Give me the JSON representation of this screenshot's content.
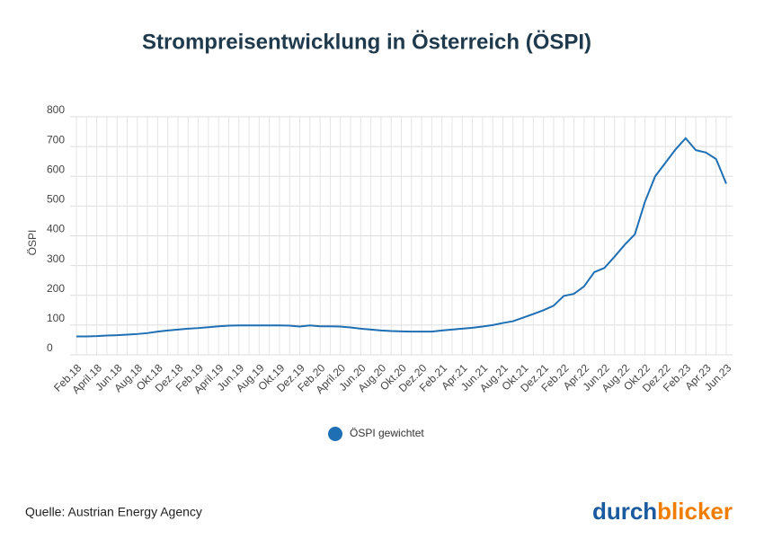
{
  "chart_data": {
    "type": "line",
    "title": "Strompreisentwicklung in Österreich (ÖSPI)",
    "y_label": "ÖSPI",
    "categories": [
      "Feb.18",
      null,
      "April.18",
      null,
      "Jun.18",
      null,
      "Aug.18",
      null,
      "Okt.18",
      null,
      "Dez.18",
      null,
      "Feb.19",
      null,
      "April.19",
      null,
      "Jun.19",
      null,
      "Aug.19",
      null,
      "Okt.19",
      null,
      "Dez.19",
      null,
      "Feb.20",
      null,
      "April.20",
      null,
      "Jun.20",
      null,
      "Aug.20",
      null,
      "Okt.20",
      null,
      "Dez.20",
      null,
      "Feb.21",
      null,
      "Apr.21",
      null,
      "Jun.21",
      null,
      "Aug.21",
      null,
      "Okt.21",
      null,
      "Dez.21",
      null,
      "Feb.22",
      null,
      "Apr.22",
      null,
      "Jun.22",
      null,
      "Aug.22",
      null,
      "Okt.22",
      null,
      "Dez.22",
      null,
      "Feb.23",
      null,
      "Apr.23",
      null,
      "Jun.23"
    ],
    "series": [
      {
        "name": "ÖSPI gewichtet",
        "color": "#1f6fb4",
        "values": [
          62,
          62,
          63,
          65,
          66,
          68,
          70,
          73,
          78,
          82,
          85,
          88,
          90,
          93,
          96,
          98,
          99,
          99,
          99,
          99,
          99,
          98,
          95,
          99,
          96,
          96,
          95,
          92,
          88,
          85,
          82,
          80,
          79,
          78,
          78,
          78,
          82,
          85,
          88,
          91,
          95,
          100,
          107,
          113,
          125,
          137,
          150,
          165,
          198,
          205,
          230,
          278,
          292,
          330,
          370,
          405,
          515,
          600,
          645,
          690,
          728,
          688,
          680,
          658,
          575
        ]
      }
    ],
    "ylim": [
      0,
      800
    ],
    "yticks": [
      0,
      100,
      200,
      300,
      400,
      500,
      600,
      700,
      800
    ],
    "grid": true,
    "source": "Quelle: Austrian Energy Agency",
    "logo": [
      "durch",
      "blicker"
    ]
  }
}
